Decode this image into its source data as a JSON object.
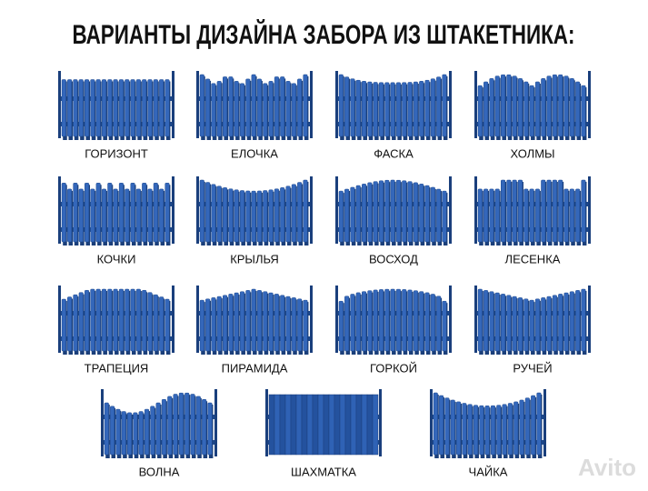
{
  "header": {
    "title": "ВАРИАНТЫ ДИЗАЙНА ЗАБОРА ИЗ ШТАКЕТНИКА:"
  },
  "items": [
    {
      "label": "ГОРИЗОНТ"
    },
    {
      "label": "ЕЛОЧКА"
    },
    {
      "label": "ФАСКА"
    },
    {
      "label": "ХОЛМЫ"
    },
    {
      "label": "КОЧКИ"
    },
    {
      "label": "КРЫЛЬЯ"
    },
    {
      "label": "ВОСХОД"
    },
    {
      "label": "ЛЕСЕНКА"
    },
    {
      "label": "ТРАПЕЦИЯ"
    },
    {
      "label": "ПИРАМИДА"
    },
    {
      "label": "ГОРКОЙ"
    },
    {
      "label": "РУЧЕЙ"
    },
    {
      "label": "ВОЛНА"
    },
    {
      "label": "ШАХМАТКА"
    },
    {
      "label": "ЧАЙКА"
    }
  ],
  "watermark": "Avito"
}
